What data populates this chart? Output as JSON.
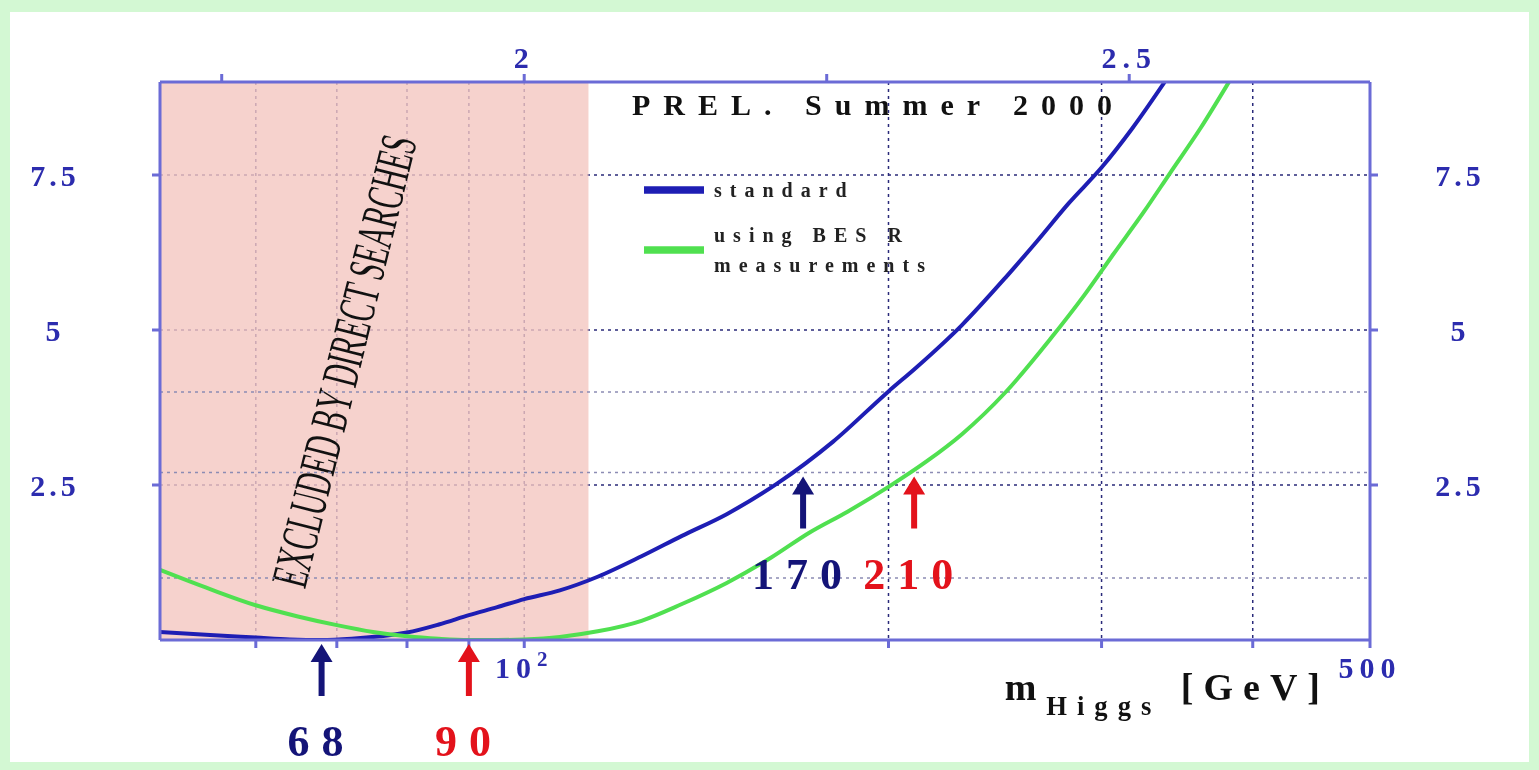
{
  "chart_data": {
    "type": "line",
    "series": [
      {
        "name": "standard",
        "color": "#1e1eb4",
        "x": [
          50,
          55,
          60,
          64,
          68,
          72,
          76,
          80,
          85,
          90,
          95,
          100,
          107,
          115,
          125,
          135,
          147,
          162,
          180,
          200,
          211,
          230,
          250,
          265,
          282,
          300,
          318,
          338
        ],
        "values": [
          0.13,
          0.08,
          0.04,
          0.01,
          0,
          0.02,
          0.06,
          0.12,
          0.25,
          0.4,
          0.53,
          0.66,
          0.8,
          1.02,
          1.35,
          1.68,
          2.03,
          2.53,
          3.2,
          4.01,
          4.4,
          5.08,
          5.85,
          6.42,
          7.05,
          7.62,
          8.25,
          8.99
        ]
      },
      {
        "name": "using BES R measurements",
        "color": "#50e050",
        "x": [
          50,
          55,
          60,
          65,
          70,
          75,
          80,
          85,
          90,
          95,
          100,
          107,
          115,
          125,
          135,
          147,
          160,
          172,
          185,
          200,
          215,
          230,
          250,
          272,
          290,
          307,
          325,
          342,
          362,
          382
        ],
        "values": [
          1.13,
          0.82,
          0.56,
          0.38,
          0.24,
          0.13,
          0.06,
          0.02,
          0,
          0,
          0.01,
          0.05,
          0.14,
          0.31,
          0.58,
          0.92,
          1.33,
          1.73,
          2.07,
          2.47,
          2.88,
          3.32,
          4.0,
          4.85,
          5.55,
          6.23,
          6.9,
          7.54,
          8.25,
          8.99
        ]
      }
    ],
    "xlabel": "m$_{Higgs}$ [GeV]",
    "xlim": [
      50,
      500
    ],
    "log": "x",
    "xticks": [
      {
        "value": 60,
        "label": null
      },
      {
        "value": 70,
        "label": null
      },
      {
        "value": 80,
        "label": null
      },
      {
        "value": 90,
        "label": null
      },
      {
        "value": 100,
        "label": "10$^{2}$"
      },
      {
        "value": 200,
        "label": null
      },
      {
        "value": 300,
        "label": null
      },
      {
        "value": 400,
        "label": null
      },
      500
    ],
    "x2lim": [
      1.699,
      2.699
    ],
    "x2ticks": [
      {
        "value": 1.75,
        "label": null
      },
      2,
      {
        "value": 2.25,
        "label": null
      },
      2.5
    ],
    "ylim": [
      0,
      9
    ],
    "yticks": [
      2.5,
      5,
      7.5
    ],
    "y2lim": [
      0,
      9
    ],
    "y2ticks": [
      2.5,
      5,
      7.5
    ],
    "grid": true,
    "legend": "top",
    "ref_lines": [
      {
        "axis": "y",
        "value": 1,
        "color": "#8c8cb4",
        "line_style": "dotted"
      },
      {
        "axis": "y",
        "value": 2.7,
        "color": "#8c8cb4",
        "line_style": "dotted"
      },
      {
        "axis": "y",
        "value": 4,
        "color": "#8c8cb4",
        "line_style": "dotted"
      }
    ],
    "bands": [
      {
        "axis": "x",
        "from": 50,
        "to": 113,
        "label": "EXCLUDED BY DIRECT SEARCHES",
        "color": "#f4c7c1"
      }
    ],
    "annotations": [
      "PREL. Summer 2000",
      {
        "text": "68",
        "x": 68,
        "y": 0
      },
      {
        "text": "90",
        "x": 90,
        "y": 0
      },
      {
        "text": "170",
        "x": 170,
        "y": 2.7
      },
      {
        "text": "210",
        "x": 210,
        "y": 2.7
      }
    ]
  }
}
